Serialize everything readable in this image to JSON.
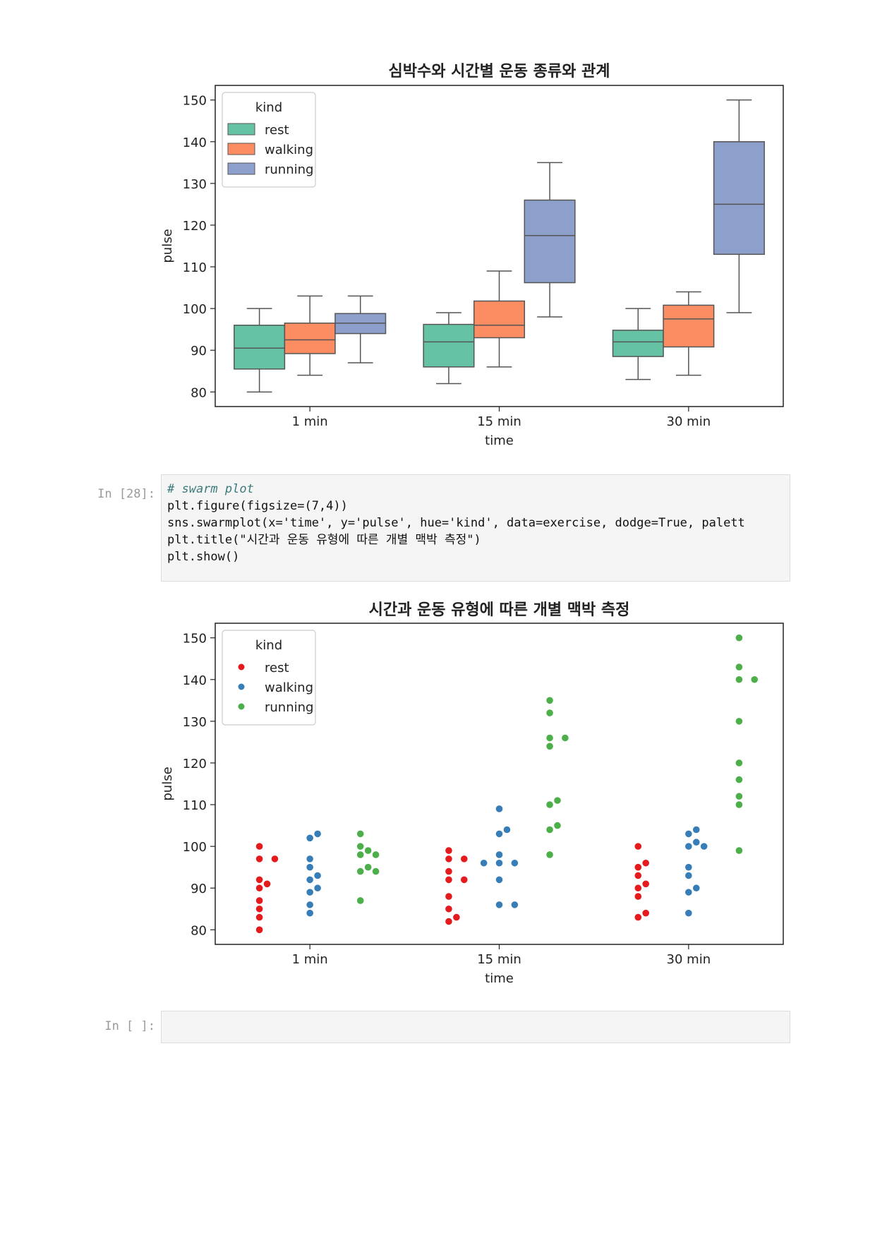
{
  "chart_data": [
    {
      "type": "box",
      "title": "심박수와 시간별 운동 종류와 관계",
      "xlabel": "time",
      "ylabel": "pulse",
      "categories": [
        "1 min",
        "15 min",
        "30 min"
      ],
      "ylim": [
        76.5,
        153.5
      ],
      "yticks": [
        80,
        90,
        100,
        110,
        120,
        130,
        140,
        150
      ],
      "legend": {
        "title": "kind",
        "position": "upper-left"
      },
      "series": [
        {
          "name": "rest",
          "color": "#66c2a5",
          "boxes": [
            {
              "whislo": 80,
              "q1": 85.5,
              "med": 90.5,
              "q3": 96,
              "whishi": 100
            },
            {
              "whislo": 82,
              "q1": 86,
              "med": 92,
              "q3": 96.2,
              "whishi": 99
            },
            {
              "whislo": 83,
              "q1": 88.5,
              "med": 92,
              "q3": 94.8,
              "whishi": 100
            }
          ]
        },
        {
          "name": "walking",
          "color": "#fc8d62",
          "boxes": [
            {
              "whislo": 84,
              "q1": 89.2,
              "med": 92.5,
              "q3": 96.5,
              "whishi": 103
            },
            {
              "whislo": 86,
              "q1": 93,
              "med": 96,
              "q3": 101.8,
              "whishi": 109
            },
            {
              "whislo": 84,
              "q1": 90.8,
              "med": 97.5,
              "q3": 100.8,
              "whishi": 104
            }
          ]
        },
        {
          "name": "running",
          "color": "#8da0cb",
          "boxes": [
            {
              "whislo": 87,
              "q1": 94,
              "med": 96.5,
              "q3": 98.8,
              "whishi": 103
            },
            {
              "whislo": 98,
              "q1": 106.2,
              "med": 117.5,
              "q3": 126,
              "whishi": 135
            },
            {
              "whislo": 99,
              "q1": 113,
              "med": 125,
              "q3": 140,
              "whishi": 150
            }
          ]
        }
      ]
    },
    {
      "type": "scatter",
      "title": "시간과 운동 유형에 따른 개별 맥박 측정",
      "xlabel": "time",
      "ylabel": "pulse",
      "categories": [
        "1 min",
        "15 min",
        "30 min"
      ],
      "ylim": [
        76.5,
        153.5
      ],
      "yticks": [
        80,
        90,
        100,
        110,
        120,
        130,
        140,
        150
      ],
      "legend": {
        "title": "kind",
        "position": "upper-left"
      },
      "series": [
        {
          "name": "rest",
          "color": "#e41a1c",
          "values": [
            [
              80,
              83,
              85,
              87,
              90,
              91,
              92,
              97,
              97,
              100
            ],
            [
              82,
              83,
              85,
              88,
              92,
              92,
              94,
              97,
              97,
              99
            ],
            [
              83,
              84,
              88,
              90,
              91,
              93,
              95,
              96,
              100
            ]
          ]
        },
        {
          "name": "walking",
          "color": "#377eb8",
          "values": [
            [
              84,
              86,
              89,
              90,
              92,
              93,
              95,
              97,
              102,
              103
            ],
            [
              86,
              86,
              92,
              96,
              96,
              96,
              98,
              103,
              104,
              109
            ],
            [
              84,
              89,
              90,
              93,
              95,
              100,
              100,
              101,
              103,
              104
            ]
          ]
        },
        {
          "name": "running",
          "color": "#4daf4a",
          "values": [
            [
              87,
              94,
              94,
              95,
              98,
              98,
              99,
              100,
              103
            ],
            [
              98,
              104,
              105,
              110,
              111,
              124,
              126,
              126,
              132,
              135
            ],
            [
              99,
              110,
              112,
              116,
              120,
              130,
              140,
              140,
              143,
              150
            ]
          ]
        }
      ]
    }
  ],
  "cells": {
    "code_prompt": "In [28]:",
    "empty_prompt": "In [ ]:",
    "code_lines": [
      "# swarm plot",
      "plt.figure(figsize=(7,4))",
      "sns.swarmplot(x='time', y='pulse', hue='kind', data=exercise, dodge=True, palett",
      "plt.title(\"시간과 운동 유형에 따른 개별 맥박 측정\")",
      "plt.show()"
    ]
  }
}
